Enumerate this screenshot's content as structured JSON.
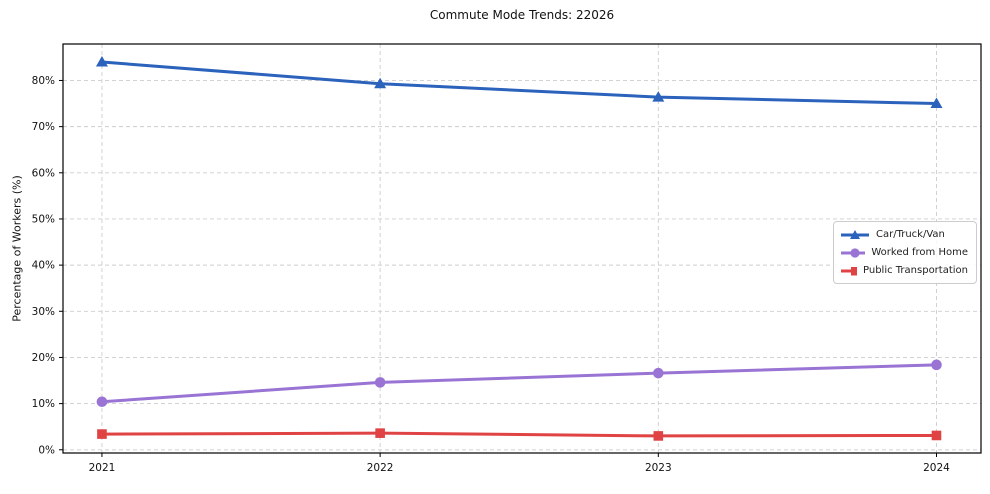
{
  "chart_data": {
    "type": "line",
    "title": "Commute Mode Trends: 22026",
    "xlabel": "",
    "ylabel": "Percentage of Workers (%)",
    "x": [
      2021,
      2022,
      2023,
      2024
    ],
    "x_ticks": [
      {
        "value": 2021,
        "label": "2021"
      },
      {
        "value": 2022,
        "label": "2022"
      },
      {
        "value": 2023,
        "label": "2023"
      },
      {
        "value": 2024,
        "label": "2024"
      }
    ],
    "y_ticks": [
      {
        "value": 0,
        "label": "0%"
      },
      {
        "value": 10,
        "label": "10%"
      },
      {
        "value": 20,
        "label": "20%"
      },
      {
        "value": 30,
        "label": "30%"
      },
      {
        "value": 40,
        "label": "40%"
      },
      {
        "value": 50,
        "label": "50%"
      },
      {
        "value": 60,
        "label": "60%"
      },
      {
        "value": 70,
        "label": "70%"
      },
      {
        "value": 80,
        "label": "80%"
      }
    ],
    "series": [
      {
        "name": "Car/Truck/Van",
        "color": "#2a62bc",
        "marker": "triangle-up",
        "values": [
          84.0,
          79.3,
          76.4,
          75.0
        ]
      },
      {
        "name": "Worked from Home",
        "color": "#9a74d4",
        "marker": "circle",
        "values": [
          10.4,
          14.6,
          16.6,
          18.4
        ]
      },
      {
        "name": "Public Transportation",
        "color": "#e04343",
        "marker": "square",
        "values": [
          3.4,
          3.6,
          3.0,
          3.1
        ]
      }
    ],
    "xlim": [
      2020.86,
      2024.16
    ],
    "ylim": [
      -0.7,
      87.9
    ],
    "grid": true,
    "grid_color": "#cdcdcd",
    "grid_style": "dashed",
    "spine_color": "#000000",
    "tick_label_color": "#111111",
    "legend_position": "center right"
  }
}
